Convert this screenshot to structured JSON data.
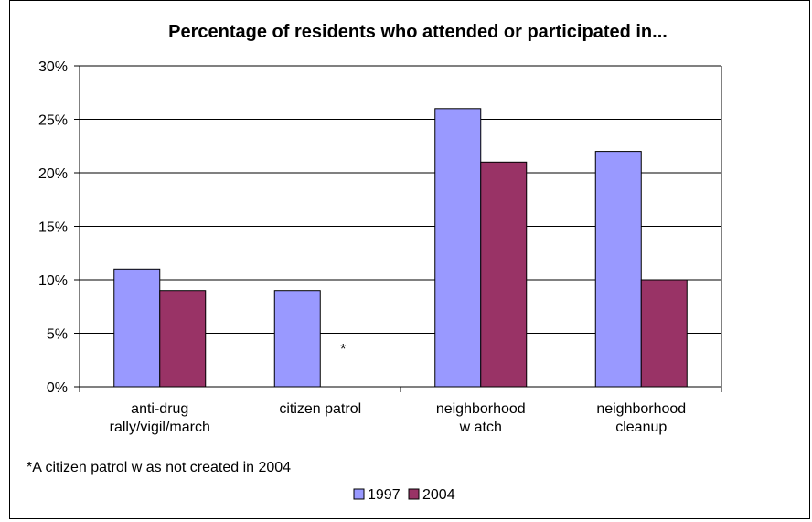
{
  "chart_data": {
    "type": "bar",
    "title": "Percentage of residents who attended or participated in...",
    "categories": [
      [
        "anti-drug",
        "rally/vigil/march"
      ],
      [
        "citizen patrol"
      ],
      [
        "neighborhood",
        "w atch"
      ],
      [
        "neighborhood",
        "cleanup"
      ]
    ],
    "series": [
      {
        "name": "1997",
        "color": "#9999ff",
        "values": [
          11,
          9,
          26,
          22
        ]
      },
      {
        "name": "2004",
        "color": "#993366",
        "values": [
          9,
          null,
          21,
          10
        ]
      }
    ],
    "ylim": [
      0,
      30
    ],
    "yticks": [
      0,
      5,
      10,
      15,
      20,
      25,
      30
    ],
    "ytick_labels": [
      "0%",
      "5%",
      "10%",
      "15%",
      "20%",
      "25%",
      "30%"
    ],
    "gridlines": true,
    "legend_position": "bottom",
    "annotations": [
      {
        "text": "*",
        "category_index": 1,
        "series_index": 1
      }
    ],
    "footnote": "*A citizen patrol w as not created in 2004"
  }
}
